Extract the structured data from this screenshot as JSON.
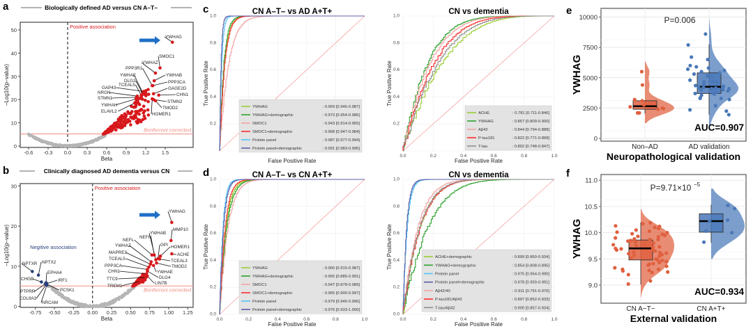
{
  "chart_data": [
    {
      "panel": "a",
      "type": "scatter",
      "title": "Biologically defined AD versus CN A–T–",
      "xlabel": "Beta",
      "ylabel": "–Log10(p–value)",
      "xlim": [
        -0.7,
        1.85
      ],
      "ylim": [
        0,
        52
      ],
      "xticks": [
        "-0.6",
        "-0.3",
        "0.0",
        "0.3",
        "0.6",
        "0.9",
        "1.2",
        "1.5"
      ],
      "yticks": [
        "0",
        "10",
        "20",
        "30",
        "40",
        "50"
      ],
      "annotations": {
        "positive": "Positive association",
        "threshold": "Bonferroni corrected"
      },
      "threshold": 5.2,
      "colors": {
        "positive": "#d7191c",
        "nonsig": "#b5b5b5",
        "negative": "#2b3f7a",
        "arrow": "#1f6fc6",
        "threshold": "#f08a80"
      },
      "highlighted": "YWHAG",
      "genes": [
        {
          "name": "YWHAG",
          "beta": 1.61,
          "logp": 44.7
        },
        {
          "name": "SMOC1",
          "beta": 1.42,
          "logp": 33.6
        },
        {
          "name": "YWHAZ",
          "beta": 1.35,
          "logp": 31.4
        },
        {
          "name": "YWHAB",
          "beta": 1.33,
          "logp": 28.1
        },
        {
          "name": "PPP3R1",
          "beta": 1.3,
          "logp": 26.0
        },
        {
          "name": "PPP3CA",
          "beta": 1.31,
          "logp": 26.0
        },
        {
          "name": "YWHAE",
          "beta": 1.15,
          "logp": 23.2
        },
        {
          "name": "GAGE2D",
          "beta": 1.32,
          "logp": 22.5
        },
        {
          "name": "DLG2",
          "beta": 1.16,
          "logp": 22.3
        },
        {
          "name": "TCEAL5",
          "beta": 1.13,
          "logp": 21.9
        },
        {
          "name": "CHN1",
          "beta": 1.4,
          "logp": 21.9
        },
        {
          "name": "GAP43",
          "beta": 1.17,
          "logp": 23.5
        },
        {
          "name": "STMN2",
          "beta": 1.32,
          "logp": 20.0
        },
        {
          "name": "NRGN",
          "beta": 1.07,
          "logp": 21.5
        },
        {
          "name": "TMOD2",
          "beta": 1.35,
          "logp": 19.5
        },
        {
          "name": "STMN1",
          "beta": 1.06,
          "logp": 21.0
        },
        {
          "name": "HOMER1",
          "beta": 1.3,
          "logp": 20.3
        },
        {
          "name": "YWHAH",
          "beta": 1.05,
          "logp": 20.3
        },
        {
          "name": "ELAVL2",
          "beta": 1.03,
          "logp": 18.5
        }
      ]
    },
    {
      "panel": "b",
      "type": "scatter",
      "title": "Clinically diagnosed AD dementia versus CN",
      "xlabel": "Beta",
      "ylabel": "–Log10(p–value)",
      "xlim": [
        -0.95,
        1.32
      ],
      "ylim": [
        0,
        30.5
      ],
      "xticks": [
        "-0.75",
        "-0.50",
        "-0.25",
        "0.00",
        "0.25",
        "0.50",
        "0.75",
        "1.00",
        "1.25"
      ],
      "yticks": [
        "0",
        "10",
        "20",
        "30"
      ],
      "annotations": {
        "positive": "Positive association",
        "negative": "Negitive association",
        "threshold": "Bonferroni corrected"
      },
      "threshold": 5.1,
      "highlighted": "YWHAG",
      "genes": [
        {
          "name": "YWHAG",
          "beta": 1.04,
          "logp": 20.9
        },
        {
          "name": "MMP10",
          "beta": 1.03,
          "logp": 16.4
        },
        {
          "name": "HOMER1",
          "beta": 0.89,
          "logp": 12.5
        },
        {
          "name": "ACHE",
          "beta": 1.04,
          "logp": 13.1
        },
        {
          "name": "GPI",
          "beta": 0.86,
          "logp": 11.9
        },
        {
          "name": "YWHAB",
          "beta": 0.83,
          "logp": 11.6
        },
        {
          "name": "NEFH",
          "beta": 0.81,
          "logp": 12.8
        },
        {
          "name": "NEFL",
          "beta": 0.78,
          "logp": 12.8
        },
        {
          "name": "TCEAL3",
          "beta": 0.88,
          "logp": 11.8
        },
        {
          "name": "TMOD2",
          "beta": 0.84,
          "logp": 10.8
        },
        {
          "name": "YWHAZ",
          "beta": 0.77,
          "logp": 11.1
        },
        {
          "name": "YWHAE",
          "beta": 0.8,
          "logp": 10.2
        },
        {
          "name": "MAPRE3",
          "beta": 0.76,
          "logp": 10.5
        },
        {
          "name": "TCEAL5",
          "beta": 0.74,
          "logp": 9.8
        },
        {
          "name": "PPP3CA",
          "beta": 0.72,
          "logp": 9.2
        },
        {
          "name": "DLG4",
          "beta": 0.72,
          "logp": 8.8
        },
        {
          "name": "CHN1",
          "beta": 0.71,
          "logp": 8.1
        },
        {
          "name": "LIN7B",
          "beta": 0.72,
          "logp": 7.5
        },
        {
          "name": "TTC9",
          "beta": 0.7,
          "logp": 7.2
        },
        {
          "name": "TREM1",
          "beta": 0.63,
          "logp": 6.3
        },
        {
          "name": "NPTXR",
          "beta": -0.79,
          "logp": 8.7,
          "neg": true
        },
        {
          "name": "NPTX2",
          "beta": -0.71,
          "logp": 7.8,
          "neg": true
        },
        {
          "name": "EPHA4",
          "beta": -0.61,
          "logp": 5.9,
          "neg": true
        },
        {
          "name": "CHGB",
          "beta": -0.67,
          "logp": 6.1,
          "neg": true
        },
        {
          "name": "IRF1",
          "beta": -0.6,
          "logp": 5.7,
          "neg": true
        },
        {
          "name": "PTPRR",
          "beta": -0.62,
          "logp": 5.6,
          "neg": true
        },
        {
          "name": "PCSK1",
          "beta": -0.6,
          "logp": 5.5,
          "neg": true
        },
        {
          "name": "COL9A3",
          "beta": -0.61,
          "logp": 5.4,
          "neg": true
        },
        {
          "name": "NRCAM",
          "beta": -0.6,
          "logp": 5.3,
          "neg": true
        }
      ]
    },
    {
      "panel": "c",
      "type": "line",
      "subtype": "roc",
      "title": "CN A–T– vs AD A+T+",
      "xlabel": "False Positive Rate",
      "ylabel": "True Positive Rate",
      "xlim": [
        0,
        1
      ],
      "ylim": [
        0,
        1
      ],
      "xticks": [],
      "yticks": [
        "0.2",
        "0.4",
        "0.6",
        "0.8",
        "1.0"
      ],
      "series": [
        {
          "name": "YWHAG",
          "auc": "0.969 [0.946-0.987]",
          "auc_value": 0.969,
          "color": "#9acd32"
        },
        {
          "name": "YWHAG+demographic",
          "auc": "0.973 [0.954-0.986]",
          "auc_value": 0.973,
          "color": "#2ca02c"
        },
        {
          "name": "SMOC1",
          "auc": "0.943 [0.914-0.965]",
          "auc_value": 0.943,
          "color": "#f4a3a3"
        },
        {
          "name": "SMOC1+demographic",
          "auc": "0.968 [0.947-0.984]",
          "auc_value": 0.968,
          "color": "#ff2a2a"
        },
        {
          "name": "Protein panel",
          "auc": "0.987 [0.977-0.994]",
          "auc_value": 0.987,
          "color": "#4fc3f7"
        },
        {
          "name": "Protein panel+demographic",
          "auc": "0.991 [0.983-0.996]",
          "auc_value": 0.991,
          "color": "#5b5ea6"
        }
      ]
    },
    {
      "panel": "c-right",
      "type": "line",
      "subtype": "roc",
      "title": "CN vs dementia",
      "xlabel": "False Positive Rate",
      "ylabel": "True Positive Rate",
      "xlim": [
        0,
        1
      ],
      "ylim": [
        0,
        1
      ],
      "xticks": [
        "0.0",
        "0.2",
        "0.4",
        "0.6",
        "0.8",
        "1.0"
      ],
      "yticks": [
        "0.2",
        "0.4",
        "0.6",
        "0.8",
        "1.0"
      ],
      "series": [
        {
          "name": "ACHE",
          "auc": ": 0.781 [0.711-0.846]",
          "auc_value": 0.781,
          "color": "#9acd32"
        },
        {
          "name": "YWHAG",
          "auc": ": 0.857 [0.809-0.900]",
          "auc_value": 0.857,
          "color": "#2ca02c"
        },
        {
          "name": "Aβ42",
          "auc": ": 0.844 [0.794-0.888]",
          "auc_value": 0.844,
          "color": "#f4a3a3"
        },
        {
          "name": "P-tau181",
          "auc": ": 0.822 [0.771-0.868]",
          "auc_value": 0.822,
          "color": "#ff2a2a"
        },
        {
          "name": "T-tau",
          "auc": ": 0.802 [0.748-0.847]",
          "auc_value": 0.802,
          "color": "#8c8c8c"
        }
      ]
    },
    {
      "panel": "d",
      "type": "line",
      "subtype": "roc",
      "title": "CN A–T– vs CN A+T+",
      "xlabel": "False Positive Rate",
      "ylabel": "True Positive Rate",
      "xlim": [
        0,
        1
      ],
      "ylim": [
        0,
        1
      ],
      "xticks": [
        "0.0",
        "0.2",
        "0.4",
        "0.6",
        "0.8",
        "1.0"
      ],
      "yticks": [
        "0.0",
        "0.2",
        "0.4",
        "0.6",
        "0.8",
        "1.0"
      ],
      "series": [
        {
          "name": "YWHAG",
          "auc": ": 0.960 [0.915-0.987]",
          "auc_value": 0.96,
          "color": "#9acd32"
        },
        {
          "name": "YWHAG+demographic",
          "auc": ": 0.955 [0.885-0.991]",
          "auc_value": 0.955,
          "color": "#2ca02c"
        },
        {
          "name": "SMOC1",
          "auc": ": 0.947 [0.878-0.989]",
          "auc_value": 0.947,
          "color": "#f4a3a3"
        },
        {
          "name": "SMOC1+demographic",
          "auc": ": 0.965 [0.900-0.997]",
          "auc_value": 0.965,
          "color": "#ff2a2a"
        },
        {
          "name": "Protein panel",
          "auc": ": 0.979 [0.946-0.996]",
          "auc_value": 0.979,
          "color": "#4fc3f7"
        },
        {
          "name": "Protein panel+demographic",
          "auc": ": 0.976 [0.933-1.000]",
          "auc_value": 0.976,
          "color": "#5b5ea6"
        }
      ]
    },
    {
      "panel": "d-right",
      "type": "line",
      "subtype": "roc",
      "title": "CN vs dementia",
      "xlabel": "False Positive Rate",
      "ylabel": "True Positive Rate",
      "xlim": [
        0,
        1
      ],
      "ylim": [
        0,
        1
      ],
      "xticks": [
        "0.0",
        "0.2",
        "0.4",
        "0.6",
        "0.8",
        "1.0"
      ],
      "yticks": [
        "0.0",
        "0.2",
        "0.4",
        "0.6",
        "0.8",
        "1.0"
      ],
      "series": [
        {
          "name": "ACHE+demographic",
          "auc": ": 0.899 [0.860-0.934]",
          "auc_value": 0.899,
          "color": "#9acd32"
        },
        {
          "name": "YWHAG+demographic",
          "auc": ": 0.854 [0.808-0.895]",
          "auc_value": 0.854,
          "color": "#2ca02c"
        },
        {
          "name": "Protein panel",
          "auc": ": 0.975 [0.954-0.990]",
          "auc_value": 0.975,
          "color": "#4fc3f7"
        },
        {
          "name": "Protein panel+demographic",
          "auc": ": 0.978 [0.959-0.991]",
          "auc_value": 0.978,
          "color": "#5b5ea6"
        },
        {
          "name": "Aβ42/40",
          "auc": ": 0.911 [0.791-0.976]",
          "auc_value": 0.911,
          "color": "#f4a3a3"
        },
        {
          "name": "P-tau181/Aβ42",
          "auc": ": 0.897 [0.852-0.933]",
          "auc_value": 0.897,
          "color": "#ff2a2a"
        },
        {
          "name": "T-tau/Aβ42",
          "auc": ": 0.900 [0.857-0.934]",
          "auc_value": 0.9,
          "color": "#8c8c8c"
        }
      ]
    },
    {
      "panel": "e",
      "type": "scatter",
      "subtype": "raincloud",
      "xlabel": "Neuropathological validation",
      "ylabel": "YWHAG",
      "ylim": [
        0,
        10300
      ],
      "yticks": [
        "0",
        "2500",
        "5000",
        "7500",
        "10000"
      ],
      "p_value": "P=0.006",
      "auc": "AUC=0.907",
      "groups": [
        {
          "name": "Non–AD",
          "color": "#e0603f",
          "box": {
            "min": 2050,
            "q1": 2400,
            "median": 2650,
            "q3": 3100,
            "max": 3150
          },
          "points": [
            5500,
            4400,
            3200,
            2100,
            2750,
            2450,
            2500,
            2100,
            3100,
            2400,
            2600
          ]
        },
        {
          "name": "AD validation",
          "color": "#4a78b8",
          "box": {
            "min": 1950,
            "q1": 3700,
            "median": 4250,
            "q3": 5400,
            "max": 7750
          },
          "points": [
            5500,
            3650,
            3550,
            2350,
            1950,
            3700,
            4100,
            5600,
            5700,
            5800,
            5900,
            5100,
            5150,
            4800,
            4600,
            4300,
            3900,
            3800,
            3700,
            5300,
            4000,
            4200,
            3300,
            2700,
            8600,
            4400,
            3200,
            4700,
            3300,
            3350,
            2250,
            4100,
            4000,
            4150,
            6700,
            6500,
            7700,
            6000,
            5400,
            4650,
            4100,
            4200,
            4350
          ]
        }
      ]
    },
    {
      "panel": "f",
      "type": "scatter",
      "subtype": "raincloud",
      "xlabel": "External validation",
      "ylabel": "YWHAG",
      "ylim": [
        8.75,
        11.05
      ],
      "yticks": [
        "9.0",
        "9.5",
        "10.0",
        "10.5",
        "11.0"
      ],
      "p_value": "P=9.71×10",
      "p_exponent": "−5",
      "auc": "AUC=0.934",
      "groups": [
        {
          "name": "CN A−T−",
          "color": "#e0603f",
          "box": {
            "min": 9.01,
            "q1": 9.48,
            "median": 9.7,
            "q3": 9.86,
            "max": 10.2
          },
          "points": [
            10.19,
            10.12,
            10.1,
            10.13,
            10.05,
            9.98,
            10.01,
            9.95,
            9.87,
            9.87,
            9.85,
            9.8,
            9.78,
            9.75,
            9.72,
            9.7,
            9.68,
            9.65,
            9.62,
            9.6,
            9.58,
            9.55,
            9.5,
            9.48,
            9.45,
            9.4,
            9.38,
            9.33,
            9.3,
            9.27,
            9.24,
            9.2,
            9.02,
            9.08,
            9.28,
            9.25,
            9.3,
            9.43,
            9.47,
            9.52,
            9.57,
            9.63,
            9.67,
            9.73,
            9.77,
            9.82,
            9.9,
            9.93,
            9.97,
            10.0,
            10.03,
            10.08,
            10.17,
            9.88,
            9.69,
            9.61,
            9.41,
            9.36,
            9.92,
            9.84
          ]
        },
        {
          "name": "CN A+T+",
          "color": "#4a78b8",
          "box": {
            "min": 9.81,
            "q1": 10.01,
            "median": 10.22,
            "q3": 10.36,
            "max": 10.53
          },
          "points": [
            10.52,
            10.03,
            10.0,
            10.24,
            10.46,
            10.22,
            9.82
          ]
        }
      ]
    }
  ],
  "panel_labels": {
    "a": "a",
    "b": "b",
    "c": "c",
    "d": "d",
    "e": "e",
    "f": "f"
  }
}
